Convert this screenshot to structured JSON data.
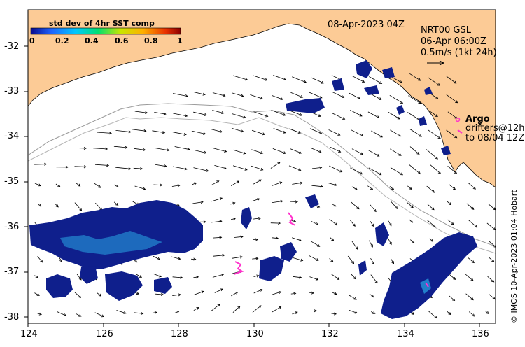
{
  "colorbar": {
    "title": "std dev of 4hr SST comp",
    "ticks": [
      "0",
      "0.2",
      "0.4",
      "0.6",
      "0.8",
      "1"
    ],
    "colors": [
      "#0a0a8c",
      "#1e64ff",
      "#00c8ff",
      "#00e070",
      "#c8e600",
      "#ffb000",
      "#e83000",
      "#8c0000"
    ]
  },
  "header": {
    "timestamp": "08-Apr-2023 04Z",
    "source": "NRT00 GSL",
    "valid": "06-Apr 06:00Z",
    "scale": "0.5m/s (1kt 24h)"
  },
  "legend": {
    "argo": "Argo",
    "drifters_line1": "drifters@12h",
    "drifters_line2": "to 08/04 12Z"
  },
  "axes": {
    "y_ticks": [
      "-32",
      "-33",
      "-34",
      "-35",
      "-36",
      "-37",
      "-38"
    ],
    "x_ticks": [
      "124",
      "126",
      "128",
      "130",
      "132",
      "134",
      "136"
    ]
  },
  "credit": "© IMOS 10-Apr-2023 01:04 Hobart",
  "colors": {
    "land": "#fccb96",
    "ocean": "#ffffff",
    "cloud_patch": "#0f1f8c",
    "drifter": "#ff33cc"
  }
}
